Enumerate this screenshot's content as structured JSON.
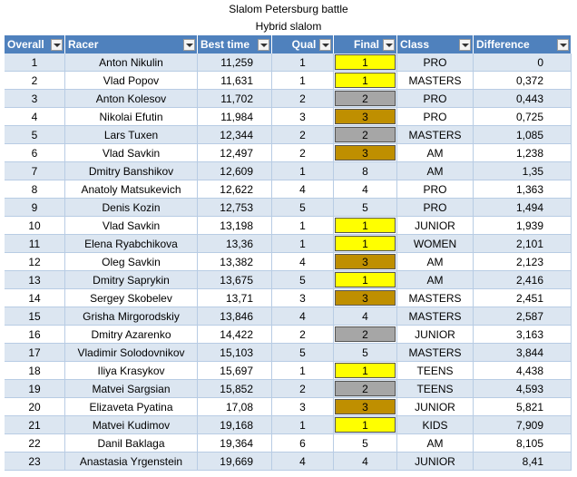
{
  "title": "Slalom Petersburg battle",
  "subtitle": "Hybrid slalom",
  "table": {
    "headers": [
      "Overall",
      "Racer",
      "Best time",
      "Qual",
      "Final",
      "Class",
      "Difference"
    ],
    "rows": [
      [
        "1",
        "Anton Nikulin",
        "11,259",
        "1",
        "1",
        "PRO",
        "0"
      ],
      [
        "2",
        "Vlad Popov",
        "11,631",
        "1",
        "1",
        "MASTERS",
        "0,372"
      ],
      [
        "3",
        "Anton Kolesov",
        "11,702",
        "2",
        "2",
        "PRO",
        "0,443"
      ],
      [
        "4",
        "Nikolai Efutin",
        "11,984",
        "3",
        "3",
        "PRO",
        "0,725"
      ],
      [
        "5",
        "Lars Tuxen",
        "12,344",
        "2",
        "2",
        "MASTERS",
        "1,085"
      ],
      [
        "6",
        "Vlad Savkin",
        "12,497",
        "2",
        "3",
        "AM",
        "1,238"
      ],
      [
        "7",
        "Dmitry Banshikov",
        "12,609",
        "1",
        "8",
        "AM",
        "1,35"
      ],
      [
        "8",
        "Anatoly Matsukevich",
        "12,622",
        "4",
        "4",
        "PRO",
        "1,363"
      ],
      [
        "9",
        "Denis Kozin",
        "12,753",
        "5",
        "5",
        "PRO",
        "1,494"
      ],
      [
        "10",
        "Vlad Savkin",
        "13,198",
        "1",
        "1",
        "JUNIOR",
        "1,939"
      ],
      [
        "11",
        "Elena Ryabchikova",
        "13,36",
        "1",
        "1",
        "WOMEN",
        "2,101"
      ],
      [
        "12",
        "Oleg Savkin",
        "13,382",
        "4",
        "3",
        "AM",
        "2,123"
      ],
      [
        "13",
        "Dmitry Saprykin",
        "13,675",
        "5",
        "1",
        "AM",
        "2,416"
      ],
      [
        "14",
        "Sergey Skobelev",
        "13,71",
        "3",
        "3",
        "MASTERS",
        "2,451"
      ],
      [
        "15",
        "Grisha Mirgorodskiy",
        "13,846",
        "4",
        "4",
        "MASTERS",
        "2,587"
      ],
      [
        "16",
        "Dmitry Azarenko",
        "14,422",
        "2",
        "2",
        "JUNIOR",
        "3,163"
      ],
      [
        "17",
        "Vladimir Solodovnikov",
        "15,103",
        "5",
        "5",
        "MASTERS",
        "3,844"
      ],
      [
        "18",
        "Iliya Krasykov",
        "15,697",
        "1",
        "1",
        "TEENS",
        "4,438"
      ],
      [
        "19",
        "Matvei Sargsian",
        "15,852",
        "2",
        "2",
        "TEENS",
        "4,593"
      ],
      [
        "20",
        "Elizaveta Pyatina",
        "17,08",
        "3",
        "3",
        "JUNIOR",
        "5,821"
      ],
      [
        "21",
        "Matvei Kudimov",
        "19,168",
        "1",
        "1",
        "KIDS",
        "7,909"
      ],
      [
        "22",
        "Danil Baklaga",
        "19,364",
        "6",
        "5",
        "AM",
        "8,105"
      ],
      [
        "23",
        "Anastasia Yrgenstein",
        "19,669",
        "4",
        "4",
        "JUNIOR",
        "8,41"
      ]
    ],
    "final_fill": [
      "#ffff00",
      "#ffff00",
      "#a6a6a6",
      "#bf8f00",
      "#a6a6a6",
      "#bf8f00",
      null,
      null,
      null,
      "#ffff00",
      "#ffff00",
      "#bf8f00",
      "#ffff00",
      "#bf8f00",
      null,
      "#a6a6a6",
      null,
      "#ffff00",
      "#a6a6a6",
      "#bf8f00",
      "#ffff00",
      null,
      null
    ]
  }
}
